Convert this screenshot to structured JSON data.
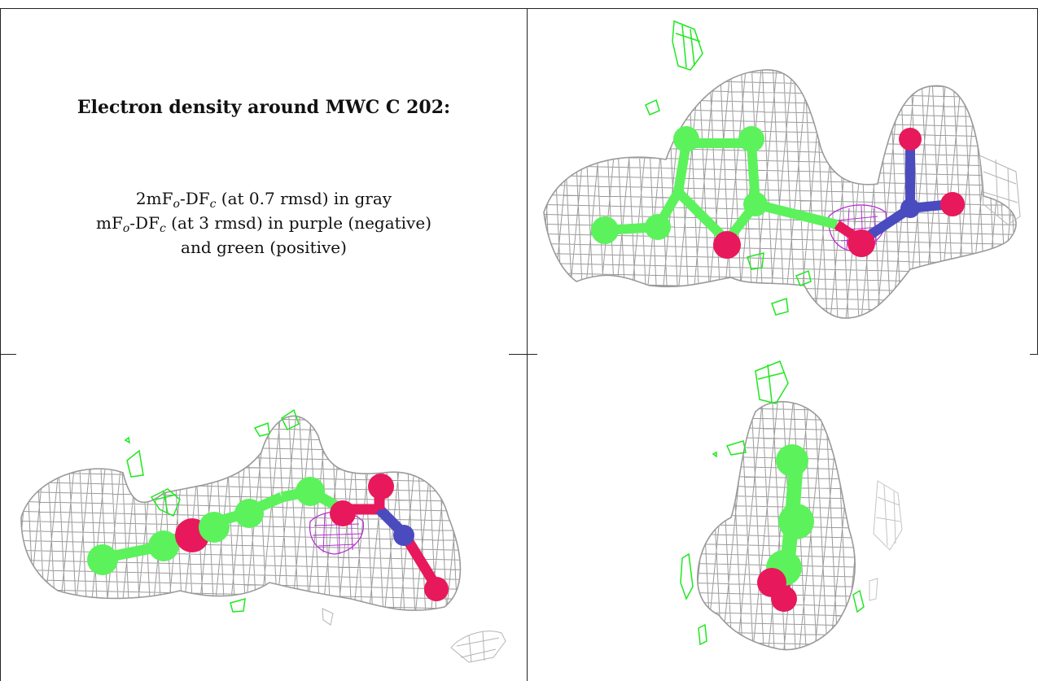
{
  "caption": {
    "title": "Electron density around MWC C 202:",
    "line1": {
      "a": "2mF",
      "b": "o",
      "c": "-DF",
      "d": "c",
      "e": " (at 0.7 rmsd) in gray"
    },
    "line2": {
      "a": "mF",
      "b": "o",
      "c": "-DF",
      "d": "c",
      "e": " (at 3 rmsd) in purple (negative)"
    },
    "line3": "and green (positive)"
  },
  "colors": {
    "mesh_gray": "#9a9a9a",
    "mesh_purple": "#b52fd0",
    "mesh_green": "#1fe81f",
    "carbon": "#5cf25c",
    "oxygen": "#e8185c",
    "nitrogen": "#4b4bc0",
    "border": "#222222"
  },
  "panels": [
    {
      "view": "top-right"
    },
    {
      "view": "bottom-left"
    },
    {
      "view": "bottom-right"
    }
  ]
}
